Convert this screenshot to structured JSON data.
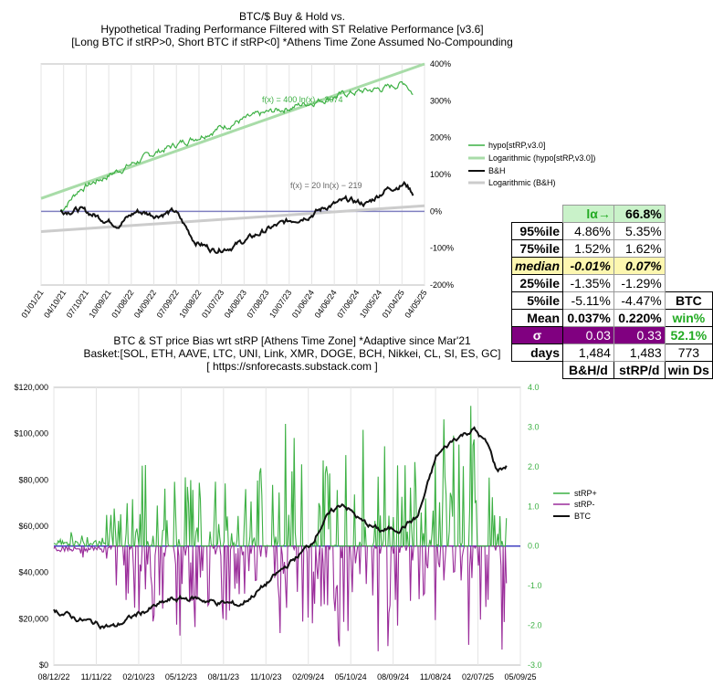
{
  "top_chart": {
    "title_lines": [
      "BTC/$ Buy & Hold vs.",
      "Hypothetical Trading Performance Filtered with ST Relative Performance [v3.6]",
      "[Long BTC if stRP>0, Short BTC if stRP<0] *Athens Time Zone Assumed No-Compounding"
    ],
    "y_ticks": [
      "400%",
      "300%",
      "200%",
      "100%",
      "0%",
      "-100%",
      "-200%"
    ],
    "x_ticks": [
      "01/01/21",
      "04/10/21",
      "07/10/21",
      "10/09/21",
      "01/08/22",
      "04/09/22",
      "07/09/22",
      "10/08/22",
      "01/07/23",
      "04/08/23",
      "07/08/23",
      "10/07/23",
      "01/06/24",
      "04/06/24",
      "07/06/24",
      "10/05/24",
      "01/04/25",
      "04/05/25"
    ],
    "annotation_hypo": "f(x) = 400 ln(x) − 3074",
    "annotation_bh": "f(x) = 20 ln(x) − 219",
    "legend": [
      "hypo[stRP,v3.0]",
      "Logarithmic (hypo[stRP,v3.0])",
      "B&H",
      "Logarithmic (B&H)"
    ],
    "colors": {
      "hypo": "#3cb043",
      "hypo_log": "#a8dca8",
      "bh": "#111111",
      "bh_log": "#cccccc",
      "zero": "#8080c0"
    }
  },
  "stats_table": {
    "header_label": "lα→",
    "header_value": "66.8%",
    "rows": [
      {
        "label": "95%ile",
        "bh": "4.86%",
        "st": "5.35%"
      },
      {
        "label": "75%ile",
        "bh": "1.52%",
        "st": "1.62%"
      },
      {
        "label": "median",
        "bh": "-0.01%",
        "st": "0.07%"
      },
      {
        "label": "25%ile",
        "bh": "-1.35%",
        "st": "-1.29%"
      },
      {
        "label": "5%ile",
        "bh": "-5.11%",
        "st": "-4.47%"
      },
      {
        "label": "Mean",
        "bh": "0.037%",
        "st": "0.220%"
      },
      {
        "label": "σ",
        "bh": "0.03",
        "st": "0.33"
      },
      {
        "label": "days",
        "bh": "1,484",
        "st": "1,483"
      }
    ],
    "extra_btc": "BTC",
    "extra_win_label": "win%",
    "extra_win_value": "52.1%",
    "extra_win_days": "773",
    "footer": [
      "B&H/d",
      "stRP/d",
      "win Ds"
    ]
  },
  "bottom_chart": {
    "title_lines": [
      "BTC & ST price Bias wrt stRP [Athens Time Zone]  *Adaptive since Mar'21",
      "Basket:[SOL, ETH, AAVE, LTC, UNI, Link, XMR, DOGE, BCH, Nikkei, CL, SI, ES, GC]",
      "[ https://snforecasts.substack.com ]"
    ],
    "y_left_ticks": [
      "$120,000",
      "$100,000",
      "$80,000",
      "$60,000",
      "$40,000",
      "$20,000",
      "$0"
    ],
    "y_right_ticks": [
      "4.0",
      "3.0",
      "2.0",
      "1.0",
      "0.0",
      "-1.0",
      "-2.0",
      "-3.0"
    ],
    "x_ticks": [
      "08/12/22",
      "11/11/22",
      "02/10/23",
      "05/12/23",
      "08/11/23",
      "11/10/23",
      "02/09/24",
      "05/10/24",
      "08/09/24",
      "11/08/24",
      "02/07/25",
      "05/09/25"
    ],
    "legend": [
      "stRP+",
      "stRP-",
      "BTC"
    ],
    "colors": {
      "pos": "#3cb043",
      "neg": "#9a2c9a",
      "btc": "#111111",
      "zero": "#4040c0"
    }
  },
  "chart_data": [
    {
      "type": "line",
      "title": "BTC/$ Buy & Hold vs. Hypothetical Trading Performance Filtered with ST Relative Performance [v3.6]",
      "xlabel": "",
      "ylabel": "",
      "ylim": [
        -200,
        400
      ],
      "x_range": [
        "01/01/21",
        "04/05/25"
      ],
      "series": [
        {
          "name": "hypo[stRP,v3.0]",
          "x": [
            0.05,
            0.1,
            0.2,
            0.3,
            0.4,
            0.5,
            0.6,
            0.7,
            0.8,
            0.9,
            0.95,
            0.97
          ],
          "values": [
            0,
            60,
            110,
            160,
            200,
            240,
            270,
            295,
            320,
            335,
            350,
            320
          ]
        },
        {
          "name": "Logarithmic (hypo[stRP,v3.0])",
          "x": [
            0,
            1
          ],
          "values": [
            35,
            400
          ]
        },
        {
          "name": "B&H",
          "x": [
            0.05,
            0.1,
            0.15,
            0.2,
            0.25,
            0.3,
            0.35,
            0.4,
            0.45,
            0.5,
            0.55,
            0.6,
            0.65,
            0.7,
            0.75,
            0.8,
            0.85,
            0.9,
            0.95,
            0.97
          ],
          "values": [
            0,
            5,
            -15,
            -35,
            0,
            -10,
            0,
            -80,
            -105,
            -95,
            -70,
            -45,
            -25,
            -10,
            15,
            30,
            20,
            60,
            75,
            50
          ]
        },
        {
          "name": "Logarithmic (B&H)",
          "x": [
            0,
            1
          ],
          "values": [
            -55,
            15
          ]
        }
      ]
    },
    {
      "type": "line",
      "title": "BTC & ST price Bias wrt stRP [Athens Time Zone] *Adaptive since Mar'21",
      "xlabel": "",
      "ylabel": "",
      "ylim": [
        0,
        120000
      ],
      "y2lim": [
        -3.0,
        4.0
      ],
      "x_range": [
        "08/12/22",
        "05/09/25"
      ],
      "series": [
        {
          "name": "BTC",
          "axis": "left",
          "x": [
            0,
            0.05,
            0.1,
            0.13,
            0.18,
            0.25,
            0.3,
            0.35,
            0.4,
            0.45,
            0.5,
            0.55,
            0.58,
            0.62,
            0.66,
            0.7,
            0.74,
            0.78,
            0.82,
            0.86,
            0.9,
            0.93,
            0.95,
            0.97
          ],
          "values": [
            24000,
            20000,
            17500,
            16500,
            22000,
            28000,
            29000,
            27000,
            26000,
            34000,
            43000,
            52000,
            63000,
            70000,
            62000,
            58000,
            59000,
            64000,
            90000,
            98000,
            102000,
            95000,
            84000,
            86000
          ]
        },
        {
          "name": "stRP+",
          "axis": "right",
          "x": [
            0.1,
            0.2,
            0.3,
            0.4,
            0.5,
            0.55,
            0.6,
            0.7,
            0.8,
            0.85,
            0.9,
            0.95
          ],
          "values": [
            0.6,
            2.3,
            1.8,
            1.5,
            3.2,
            3.9,
            2.2,
            3.4,
            2.1,
            3.8,
            3.6,
            0.8
          ]
        },
        {
          "name": "stRP-",
          "axis": "right",
          "x": [
            0.1,
            0.2,
            0.3,
            0.4,
            0.5,
            0.55,
            0.6,
            0.7,
            0.8,
            0.85,
            0.9,
            0.95
          ],
          "values": [
            -0.3,
            -2.5,
            -2.2,
            -1.8,
            -2.4,
            -2.0,
            -2.6,
            -2.8,
            -2.2,
            -2.7,
            -2.5,
            -2.9
          ]
        }
      ]
    }
  ]
}
